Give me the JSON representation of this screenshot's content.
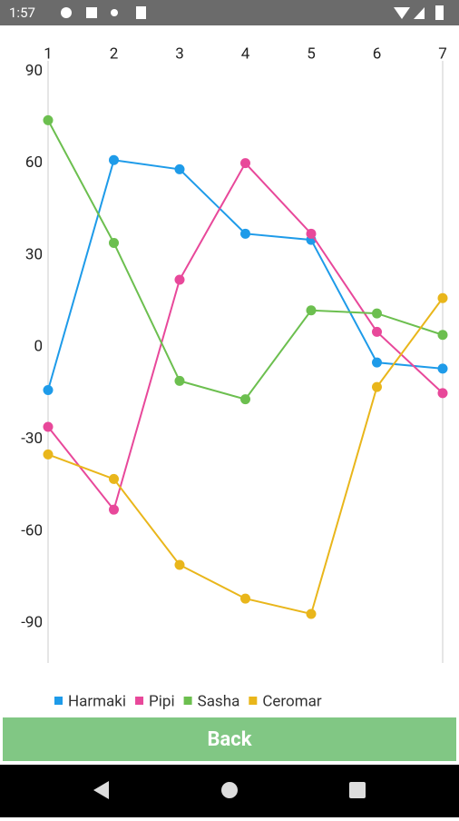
{
  "status_bar": {
    "time": "1:57"
  },
  "chart_data": {
    "type": "line",
    "x": [
      1,
      2,
      3,
      4,
      5,
      6,
      7
    ],
    "xlim": [
      1,
      7
    ],
    "xticks": [
      1,
      2,
      3,
      4,
      5,
      6,
      7
    ],
    "ylim": [
      -103,
      91
    ],
    "yticks": [
      90,
      60,
      30,
      0,
      -30,
      -60,
      -90
    ],
    "series": [
      {
        "name": "Harmaki",
        "color": "#1e9be9",
        "values": [
          -14,
          61,
          58,
          37,
          35,
          -5,
          -7
        ]
      },
      {
        "name": "Pipi",
        "color": "#e8489a",
        "values": [
          -26,
          -53,
          22,
          60,
          37,
          5,
          -15
        ]
      },
      {
        "name": "Sasha",
        "color": "#6cbf4f",
        "values": [
          74,
          34,
          -11,
          -17,
          12,
          11,
          4
        ]
      },
      {
        "name": "Ceromar",
        "color": "#e9b61b",
        "values": [
          -35,
          -43,
          -71,
          -82,
          -87,
          -13,
          16
        ]
      }
    ]
  },
  "button": {
    "label": "Back"
  }
}
